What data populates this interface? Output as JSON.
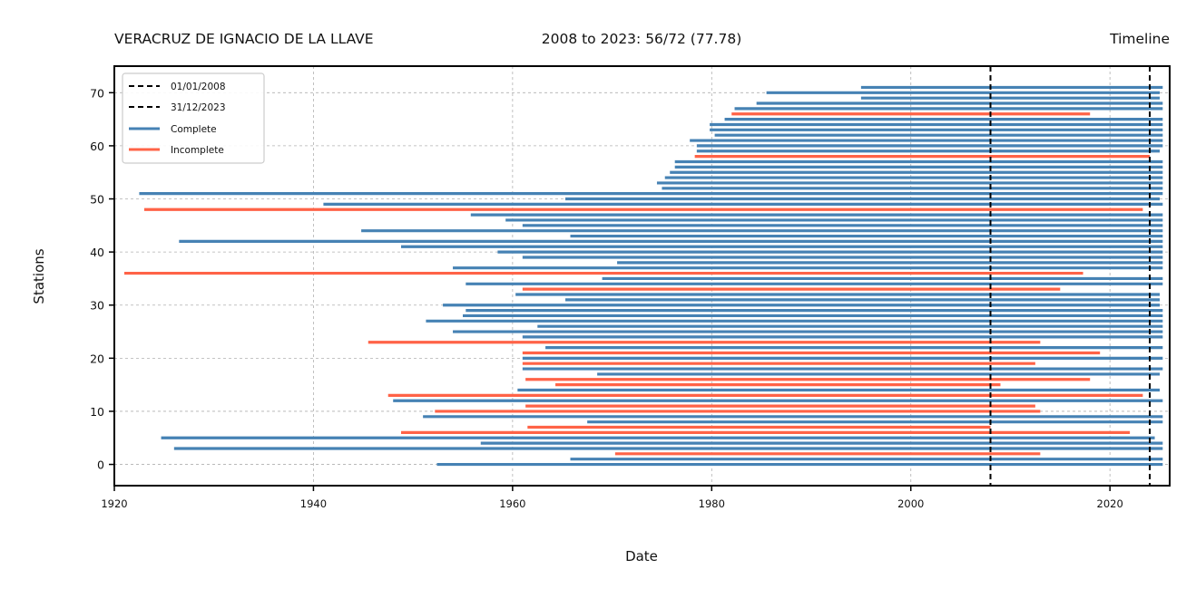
{
  "header": {
    "title_left": "VERACRUZ DE IGNACIO DE LA LLAVE",
    "title_center": "2008 to 2023: 56/72 (77.78)",
    "title_right": "Timeline"
  },
  "chart_data": {
    "type": "timeline",
    "xlabel": "Date",
    "ylabel": "Stations",
    "xlim": [
      1920,
      2026
    ],
    "ylim": [
      -4,
      75
    ],
    "xticks": [
      1920,
      1940,
      1960,
      1980,
      2000,
      2020
    ],
    "yticks": [
      0,
      10,
      20,
      30,
      40,
      50,
      60,
      70
    ],
    "grid": true,
    "legend_position": "top-left",
    "legend": [
      {
        "label": "01/01/2008",
        "style": "dashed",
        "color": "#000000"
      },
      {
        "label": "31/12/2023",
        "style": "dashed",
        "color": "#000000"
      },
      {
        "label": "Complete",
        "style": "solid",
        "color": "#4682b4"
      },
      {
        "label": "Incomplete",
        "style": "solid",
        "color": "#ff6347"
      }
    ],
    "colors": {
      "complete": "#4682b4",
      "incomplete": "#ff6347",
      "vline": "#000000"
    },
    "vlines": [
      2008.0,
      2024.0
    ],
    "stations": [
      {
        "id": 0,
        "start": 1952.4,
        "end": 2025.3,
        "status": "complete"
      },
      {
        "id": 1,
        "start": 1965.8,
        "end": 2025.3,
        "status": "complete"
      },
      {
        "id": 2,
        "start": 1970.3,
        "end": 2013.0,
        "status": "incomplete"
      },
      {
        "id": 3,
        "start": 1926.0,
        "end": 2025.3,
        "status": "complete"
      },
      {
        "id": 4,
        "start": 1956.8,
        "end": 2025.3,
        "status": "complete"
      },
      {
        "id": 5,
        "start": 1924.7,
        "end": 2024.5,
        "status": "complete"
      },
      {
        "id": 6,
        "start": 1948.8,
        "end": 2022.0,
        "status": "incomplete"
      },
      {
        "id": 7,
        "start": 1961.5,
        "end": 2008.0,
        "status": "incomplete"
      },
      {
        "id": 8,
        "start": 1967.5,
        "end": 2025.3,
        "status": "complete"
      },
      {
        "id": 9,
        "start": 1951.0,
        "end": 2025.3,
        "status": "complete"
      },
      {
        "id": 10,
        "start": 1952.2,
        "end": 2013.0,
        "status": "incomplete"
      },
      {
        "id": 11,
        "start": 1961.3,
        "end": 2012.5,
        "status": "incomplete"
      },
      {
        "id": 12,
        "start": 1948.0,
        "end": 2025.3,
        "status": "complete"
      },
      {
        "id": 13,
        "start": 1947.5,
        "end": 2023.3,
        "status": "incomplete"
      },
      {
        "id": 14,
        "start": 1960.5,
        "end": 2025.0,
        "status": "complete"
      },
      {
        "id": 15,
        "start": 1964.3,
        "end": 2009.0,
        "status": "incomplete"
      },
      {
        "id": 16,
        "start": 1961.3,
        "end": 2018.0,
        "status": "incomplete"
      },
      {
        "id": 17,
        "start": 1968.5,
        "end": 2025.0,
        "status": "complete"
      },
      {
        "id": 18,
        "start": 1961.0,
        "end": 2025.3,
        "status": "complete"
      },
      {
        "id": 19,
        "start": 1961.0,
        "end": 2012.5,
        "status": "incomplete"
      },
      {
        "id": 20,
        "start": 1961.0,
        "end": 2025.3,
        "status": "complete"
      },
      {
        "id": 21,
        "start": 1961.0,
        "end": 2019.0,
        "status": "incomplete"
      },
      {
        "id": 22,
        "start": 1963.3,
        "end": 2025.3,
        "status": "complete"
      },
      {
        "id": 23,
        "start": 1945.5,
        "end": 2013.0,
        "status": "incomplete"
      },
      {
        "id": 24,
        "start": 1961.0,
        "end": 2025.3,
        "status": "complete"
      },
      {
        "id": 25,
        "start": 1954.0,
        "end": 2025.3,
        "status": "complete"
      },
      {
        "id": 26,
        "start": 1962.5,
        "end": 2025.3,
        "status": "complete"
      },
      {
        "id": 27,
        "start": 1951.3,
        "end": 2025.3,
        "status": "complete"
      },
      {
        "id": 28,
        "start": 1955.0,
        "end": 2025.3,
        "status": "complete"
      },
      {
        "id": 29,
        "start": 1955.3,
        "end": 2025.3,
        "status": "complete"
      },
      {
        "id": 30,
        "start": 1953.0,
        "end": 2025.0,
        "status": "complete"
      },
      {
        "id": 31,
        "start": 1965.3,
        "end": 2025.0,
        "status": "complete"
      },
      {
        "id": 32,
        "start": 1960.3,
        "end": 2025.0,
        "status": "complete"
      },
      {
        "id": 33,
        "start": 1961.0,
        "end": 2015.0,
        "status": "incomplete"
      },
      {
        "id": 34,
        "start": 1955.3,
        "end": 2025.3,
        "status": "complete"
      },
      {
        "id": 35,
        "start": 1969.0,
        "end": 2025.3,
        "status": "complete"
      },
      {
        "id": 36,
        "start": 1921.0,
        "end": 2017.3,
        "status": "incomplete"
      },
      {
        "id": 37,
        "start": 1954.0,
        "end": 2025.3,
        "status": "complete"
      },
      {
        "id": 38,
        "start": 1970.5,
        "end": 2025.3,
        "status": "complete"
      },
      {
        "id": 39,
        "start": 1961.0,
        "end": 2025.3,
        "status": "complete"
      },
      {
        "id": 40,
        "start": 1958.5,
        "end": 2025.3,
        "status": "complete"
      },
      {
        "id": 41,
        "start": 1948.8,
        "end": 2025.3,
        "status": "complete"
      },
      {
        "id": 42,
        "start": 1926.5,
        "end": 2025.3,
        "status": "complete"
      },
      {
        "id": 43,
        "start": 1965.8,
        "end": 2025.3,
        "status": "complete"
      },
      {
        "id": 44,
        "start": 1944.8,
        "end": 2025.3,
        "status": "complete"
      },
      {
        "id": 45,
        "start": 1961.0,
        "end": 2025.3,
        "status": "complete"
      },
      {
        "id": 46,
        "start": 1959.3,
        "end": 2025.3,
        "status": "complete"
      },
      {
        "id": 47,
        "start": 1955.8,
        "end": 2025.3,
        "status": "complete"
      },
      {
        "id": 48,
        "start": 1923.0,
        "end": 2023.3,
        "status": "incomplete"
      },
      {
        "id": 49,
        "start": 1941.0,
        "end": 2025.3,
        "status": "complete"
      },
      {
        "id": 50,
        "start": 1965.3,
        "end": 2025.0,
        "status": "complete"
      },
      {
        "id": 51,
        "start": 1922.5,
        "end": 2025.3,
        "status": "complete"
      },
      {
        "id": 52,
        "start": 1975.0,
        "end": 2025.3,
        "status": "complete"
      },
      {
        "id": 53,
        "start": 1974.5,
        "end": 2025.3,
        "status": "complete"
      },
      {
        "id": 54,
        "start": 1975.3,
        "end": 2025.3,
        "status": "complete"
      },
      {
        "id": 55,
        "start": 1975.8,
        "end": 2025.3,
        "status": "complete"
      },
      {
        "id": 56,
        "start": 1976.3,
        "end": 2025.3,
        "status": "complete"
      },
      {
        "id": 57,
        "start": 1976.3,
        "end": 2025.3,
        "status": "complete"
      },
      {
        "id": 58,
        "start": 1978.3,
        "end": 2024.0,
        "status": "incomplete"
      },
      {
        "id": 59,
        "start": 1978.5,
        "end": 2025.0,
        "status": "complete"
      },
      {
        "id": 60,
        "start": 1978.5,
        "end": 2025.3,
        "status": "complete"
      },
      {
        "id": 61,
        "start": 1977.8,
        "end": 2025.3,
        "status": "complete"
      },
      {
        "id": 62,
        "start": 1980.3,
        "end": 2025.3,
        "status": "complete"
      },
      {
        "id": 63,
        "start": 1979.8,
        "end": 2025.3,
        "status": "complete"
      },
      {
        "id": 64,
        "start": 1979.8,
        "end": 2025.3,
        "status": "complete"
      },
      {
        "id": 65,
        "start": 1981.3,
        "end": 2025.3,
        "status": "complete"
      },
      {
        "id": 66,
        "start": 1982.0,
        "end": 2018.0,
        "status": "incomplete"
      },
      {
        "id": 67,
        "start": 1982.3,
        "end": 2025.3,
        "status": "complete"
      },
      {
        "id": 68,
        "start": 1984.5,
        "end": 2025.3,
        "status": "complete"
      },
      {
        "id": 69,
        "start": 1995.0,
        "end": 2025.0,
        "status": "complete"
      },
      {
        "id": 70,
        "start": 1985.5,
        "end": 2025.0,
        "status": "complete"
      },
      {
        "id": 71,
        "start": 1995.0,
        "end": 2025.3,
        "status": "complete"
      }
    ]
  }
}
